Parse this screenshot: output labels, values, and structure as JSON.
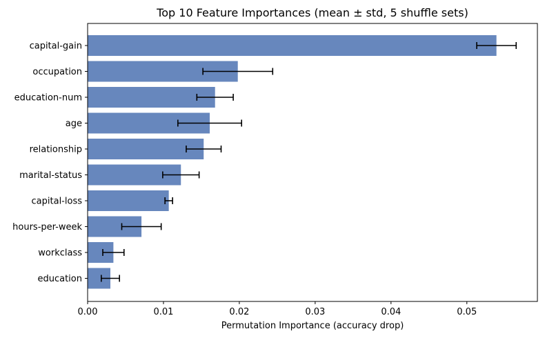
{
  "chart_data": {
    "type": "bar",
    "orientation": "horizontal",
    "title": "Top 10 Feature Importances (mean ± std, 5 shuffle sets)",
    "xlabel": "Permutation Importance (accuracy drop)",
    "ylabel": "",
    "xlim": [
      0,
      0.0593
    ],
    "xticks": [
      "0.00",
      "0.01",
      "0.02",
      "0.03",
      "0.04",
      "0.05"
    ],
    "xtick_values": [
      0,
      0.01,
      0.02,
      0.03,
      0.04,
      0.05
    ],
    "bar_color": "#6787bd",
    "error_bar_color": "#000000",
    "categories": [
      "capital-gain",
      "occupation",
      "education-num",
      "age",
      "relationship",
      "marital-status",
      "capital-loss",
      "hours-per-week",
      "workclass",
      "education"
    ],
    "values": [
      0.0539,
      0.0198,
      0.0168,
      0.0161,
      0.0153,
      0.0123,
      0.0107,
      0.0071,
      0.0034,
      0.003
    ],
    "errors": [
      0.0026,
      0.0046,
      0.0024,
      0.0042,
      0.0023,
      0.0024,
      0.0005,
      0.0026,
      0.0014,
      0.0012
    ],
    "grid": false
  }
}
